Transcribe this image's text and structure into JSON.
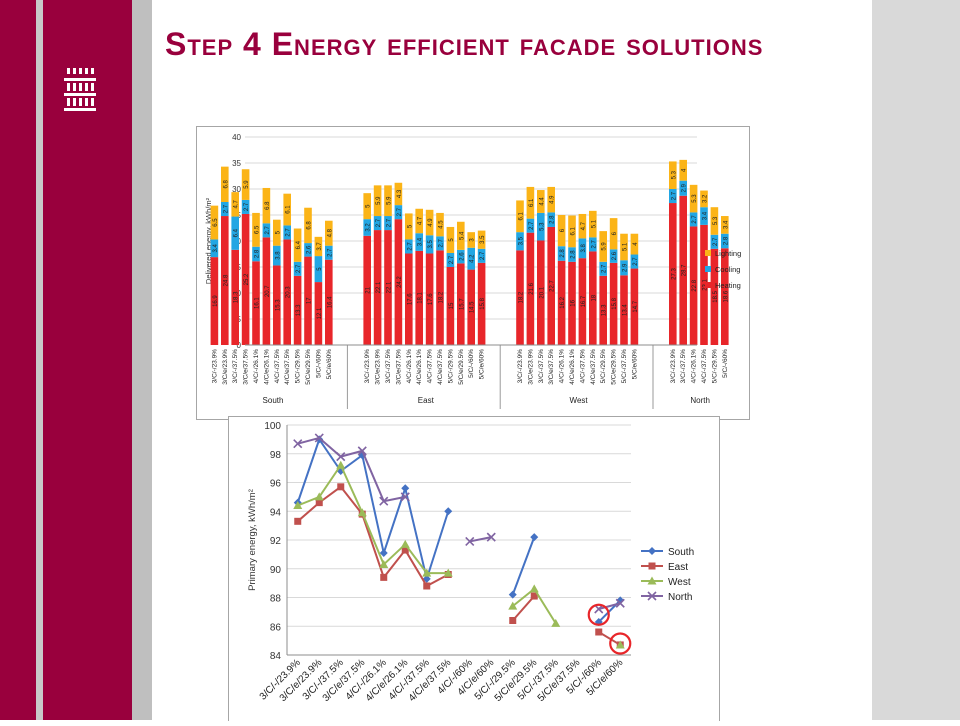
{
  "slide": {
    "title": "Step 4 Energy efficient facade solutions",
    "accent_color": "#99003d",
    "logo_icon": "building-grid-icon"
  },
  "chart_data": [
    {
      "type": "bar",
      "stacked": true,
      "ylabel": "Delivered energy, kWh/m²",
      "ylim": [
        0,
        40
      ],
      "yticks": [
        0,
        5,
        10,
        15,
        20,
        25,
        30,
        35,
        40
      ],
      "grid": true,
      "legend_position": "right",
      "series_colors": {
        "Heating": "#e8262a",
        "Cooling": "#22a6e3",
        "Lighting": "#fbb417"
      },
      "groups": [
        {
          "name": "South",
          "bars": [
            {
              "label": "3/C/-/23.9%",
              "heating": 16.9,
              "cooling": 3.4,
              "lighting": 6.5
            },
            {
              "label": "3/C/e/23.9%",
              "heating": 24.8,
              "cooling": 2.7,
              "lighting": 6.8
            },
            {
              "label": "3/C/-/37.5%",
              "heating": 18.3,
              "cooling": 6.4,
              "lighting": 4.7
            },
            {
              "label": "3/C/e/37.5%",
              "heating": 25.2,
              "cooling": 2.7,
              "lighting": 5.9
            },
            {
              "label": "4/C/-/26.1%",
              "heating": 16.1,
              "cooling": 2.8,
              "lighting": 6.5
            },
            {
              "label": "4/C/e/26.1%",
              "heating": 20.7,
              "cooling": 2.7,
              "lighting": 6.8
            },
            {
              "label": "4/C/-/37.5%",
              "heating": 15.3,
              "cooling": 3.8,
              "lighting": 5.0
            },
            {
              "label": "4/C/e/37.5%",
              "heating": 20.3,
              "cooling": 2.7,
              "lighting": 6.1
            },
            {
              "label": "5/C/-/29.5%",
              "heating": 13.3,
              "cooling": 2.7,
              "lighting": 6.4
            },
            {
              "label": "5/C/e/29.5%",
              "heating": 17.0,
              "cooling": 2.6,
              "lighting": 6.8
            },
            {
              "label": "5/C/-/60%",
              "heating": 12.1,
              "cooling": 5.0,
              "lighting": 3.7
            },
            {
              "label": "5/C/e/60%",
              "heating": 16.4,
              "cooling": 2.7,
              "lighting": 4.8
            }
          ]
        },
        {
          "name": "East",
          "bars": [
            {
              "label": "3/C/-/23.9%",
              "heating": 21.0,
              "cooling": 3.2,
              "lighting": 5.0
            },
            {
              "label": "3/C/e/23.9%",
              "heating": 22.1,
              "cooling": 2.7,
              "lighting": 5.9
            },
            {
              "label": "3/C/-/37.5%",
              "heating": 22.1,
              "cooling": 2.7,
              "lighting": 5.9
            },
            {
              "label": "3/C/e/37.5%",
              "heating": 24.2,
              "cooling": 2.7,
              "lighting": 4.3
            },
            {
              "label": "4/C/-/26.1%",
              "heating": 17.6,
              "cooling": 2.7,
              "lighting": 5.0
            },
            {
              "label": "4/C/e/26.1%",
              "heating": 18.1,
              "cooling": 3.4,
              "lighting": 4.7
            },
            {
              "label": "4/C/-/37.5%",
              "heating": 17.6,
              "cooling": 3.5,
              "lighting": 4.9
            },
            {
              "label": "4/C/e/37.5%",
              "heating": 18.2,
              "cooling": 2.7,
              "lighting": 4.5
            },
            {
              "label": "5/C/-/29.5%",
              "heating": 15.0,
              "cooling": 2.7,
              "lighting": 5.0
            },
            {
              "label": "5/C/e/29.5%",
              "heating": 15.7,
              "cooling": 2.6,
              "lighting": 5.4
            },
            {
              "label": "5/C/-/60%",
              "heating": 14.5,
              "cooling": 4.2,
              "lighting": 3.0
            },
            {
              "label": "5/C/e/60%",
              "heating": 15.8,
              "cooling": 2.7,
              "lighting": 3.5
            }
          ]
        },
        {
          "name": "West",
          "bars": [
            {
              "label": "3/C/-/23.9%",
              "heating": 18.2,
              "cooling": 3.5,
              "lighting": 6.1
            },
            {
              "label": "3/C/e/23.9%",
              "heating": 21.6,
              "cooling": 2.7,
              "lighting": 6.1
            },
            {
              "label": "3/C/-/37.5%",
              "heating": 20.1,
              "cooling": 5.3,
              "lighting": 4.4
            },
            {
              "label": "3/C/e/37.5%",
              "heating": 22.7,
              "cooling": 2.8,
              "lighting": 4.9
            },
            {
              "label": "4/C/-/26.1%",
              "heating": 16.2,
              "cooling": 2.8,
              "lighting": 6.0
            },
            {
              "label": "4/C/e/26.1%",
              "heating": 16.0,
              "cooling": 2.8,
              "lighting": 6.1
            },
            {
              "label": "4/C/-/37.5%",
              "heating": 16.7,
              "cooling": 3.8,
              "lighting": 4.7
            },
            {
              "label": "4/C/e/37.5%",
              "heating": 18.0,
              "cooling": 2.7,
              "lighting": 5.1
            },
            {
              "label": "5/C/-/29.5%",
              "heating": 13.3,
              "cooling": 2.7,
              "lighting": 5.9
            },
            {
              "label": "5/C/e/29.5%",
              "heating": 15.8,
              "cooling": 2.6,
              "lighting": 6.0
            },
            {
              "label": "5/C/-/37.5%",
              "heating": 13.4,
              "cooling": 2.9,
              "lighting": 5.1
            },
            {
              "label": "5/C/e/60%",
              "heating": 14.7,
              "cooling": 2.7,
              "lighting": 4.0
            }
          ]
        },
        {
          "name": "North",
          "bars": [
            {
              "label": "3/C/-/23.9%",
              "heating": 27.3,
              "cooling": 2.7,
              "lighting": 5.3
            },
            {
              "label": "3/C/-/37.5%",
              "heating": 28.7,
              "cooling": 2.9,
              "lighting": 4.0
            },
            {
              "label": "4/C/-/26.1%",
              "heating": 22.8,
              "cooling": 2.7,
              "lighting": 5.3
            },
            {
              "label": "4/C/-/37.5%",
              "heating": 23.1,
              "cooling": 3.4,
              "lighting": 3.2
            },
            {
              "label": "5/C/-/29.5%",
              "heating": 18.5,
              "cooling": 2.7,
              "lighting": 5.3
            },
            {
              "label": "5/C/-/60%",
              "heating": 18.6,
              "cooling": 2.8,
              "lighting": 3.4
            }
          ]
        }
      ]
    },
    {
      "type": "line",
      "ylabel": "Primary energy, kWh/m²",
      "ylim": [
        84,
        100
      ],
      "yticks": [
        84,
        86,
        88,
        90,
        92,
        94,
        96,
        98,
        100
      ],
      "grid": true,
      "legend_position": "right",
      "x": [
        "3/C/-/23.9%",
        "3/C/e/23.9%",
        "3/C/-/37.5%",
        "3/C/e/37.5%",
        "4/C/-/26.1%",
        "4/C/e/26.1%",
        "4/C/-/37.5%",
        "4/C/e/37.5%",
        "4/C/-/60%",
        "4/C/e/60%",
        "5/C/-/29.5%",
        "5/C/e/29.5%",
        "5/C/-/37.5%",
        "5/C/e/37.5%",
        "5/C/-/60%",
        "5/C/e/60%"
      ],
      "series": [
        {
          "name": "South",
          "color": "#4472c4",
          "marker": "diamond",
          "values": [
            94.6,
            99.0,
            96.8,
            97.9,
            91.1,
            95.6,
            89.3,
            94.0,
            null,
            null,
            88.2,
            92.2,
            null,
            null,
            86.3,
            87.8
          ]
        },
        {
          "name": "East",
          "color": "#c0504d",
          "marker": "square",
          "values": [
            93.3,
            94.6,
            95.7,
            93.8,
            89.4,
            91.3,
            88.8,
            89.6,
            null,
            null,
            86.4,
            88.1,
            null,
            null,
            85.6,
            84.7
          ]
        },
        {
          "name": "West",
          "color": "#9bbb59",
          "marker": "triangle",
          "values": [
            94.4,
            95.0,
            97.2,
            93.9,
            90.3,
            91.7,
            89.7,
            89.7,
            null,
            null,
            87.4,
            88.6,
            86.2,
            null,
            null,
            84.7
          ]
        },
        {
          "name": "North",
          "color": "#8064a2",
          "marker": "x",
          "values": [
            98.7,
            99.1,
            97.8,
            98.2,
            94.7,
            95.0,
            null,
            null,
            91.9,
            92.2,
            null,
            null,
            null,
            null,
            87.2,
            87.6
          ]
        }
      ],
      "highlights": [
        {
          "x": "5/C/-/60%",
          "y": 86.8,
          "color": "#e8262a"
        },
        {
          "x": "5/C/e/60%",
          "y": 84.8,
          "color": "#e8262a"
        }
      ]
    }
  ]
}
